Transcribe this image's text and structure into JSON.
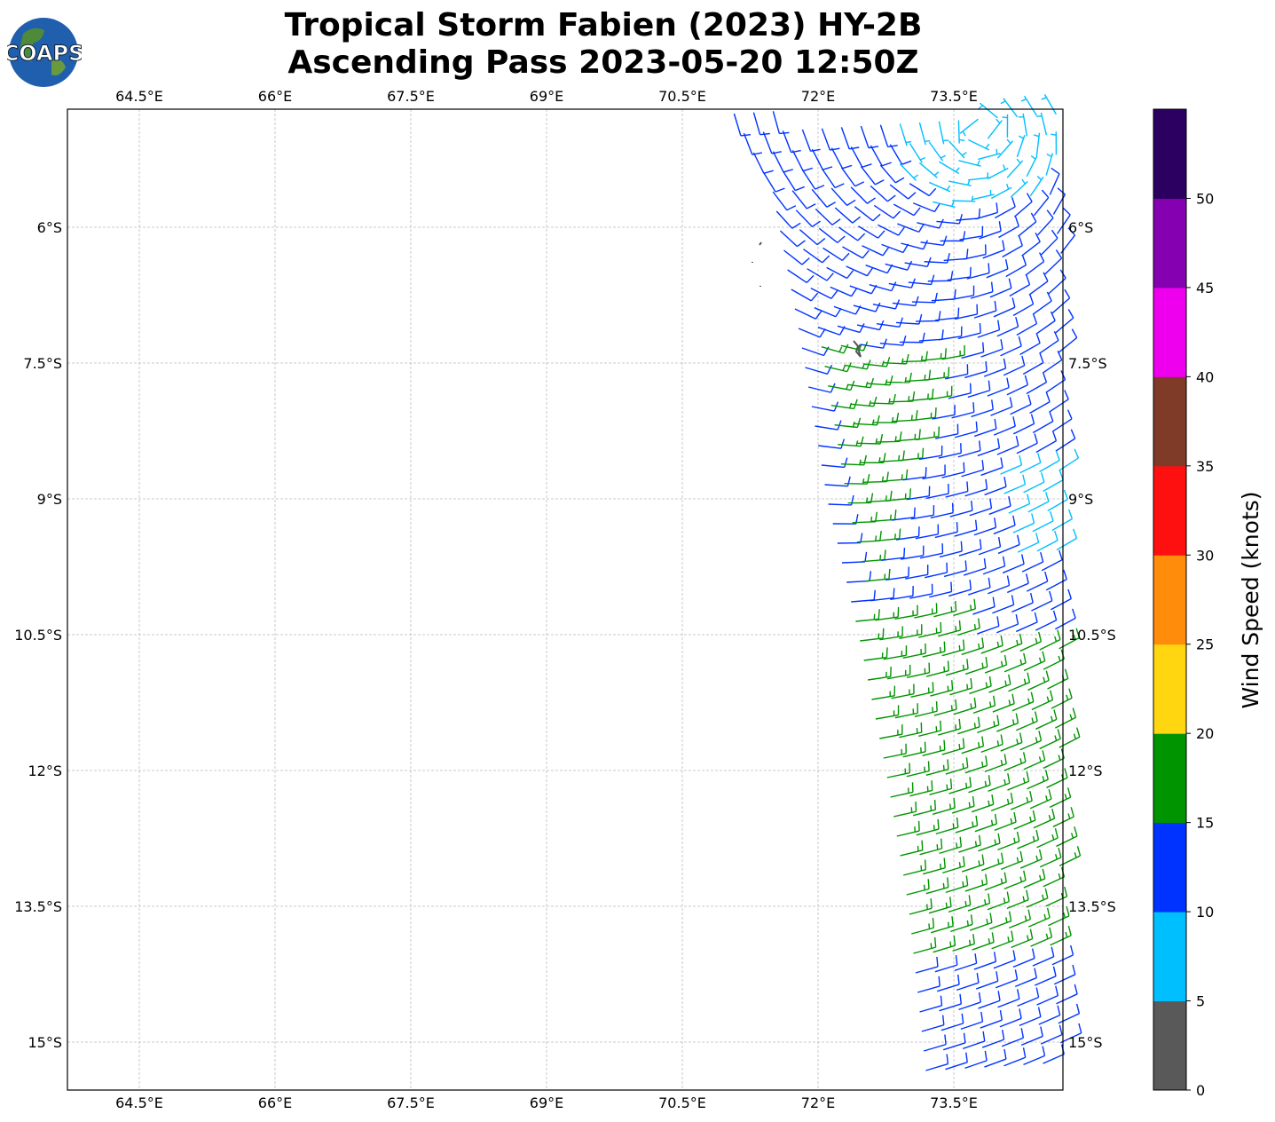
{
  "title": {
    "line1": "Tropical Storm Fabien (2023) HY-2B",
    "line2": "Ascending Pass 2023-05-20 12:50Z"
  },
  "logo": {
    "text": "COAPS"
  },
  "map": {
    "lon_ticks": [
      64.5,
      66,
      67.5,
      69,
      70.5,
      72,
      73.5
    ],
    "lon_labels": [
      "64.5°E",
      "66°E",
      "67.5°E",
      "69°E",
      "70.5°E",
      "72°E",
      "73.5°E"
    ],
    "lat_ticks": [
      -6,
      -7.5,
      -9,
      -10.5,
      -12,
      -13.5,
      -15
    ],
    "lat_labels": [
      "6°S",
      "7.5°S",
      "9°S",
      "10.5°S",
      "12°S",
      "13.5°S",
      "15°S"
    ],
    "extent": {
      "lon_min": 63.7,
      "lon_max": 74.7,
      "lat_min": -15.53,
      "lat_max": -4.7
    },
    "gridlines": true
  },
  "wind_field": {
    "circulation_center": {
      "lon": 73.8,
      "lat": -4.9
    },
    "inflow_angle_deg": 20,
    "swath_west_edge": [
      [
        72.6,
        -4.7
      ],
      [
        73.05,
        -5.6
      ],
      [
        73.35,
        -7.2
      ],
      [
        73.65,
        -9.0
      ],
      [
        74.0,
        -10.5
      ],
      [
        74.3,
        -12.0
      ],
      [
        74.55,
        -13.5
      ],
      [
        74.75,
        -15.4
      ]
    ],
    "regions": [
      {
        "name": "core",
        "speed_kt": 7,
        "radius_deg": 1.0
      },
      {
        "name": "east-calm",
        "speed_kt": 8,
        "lon": [
          74.0,
          74.7
        ],
        "lat": [
          -9.6,
          -8.6
        ]
      },
      {
        "name": "green-band",
        "speed_kt": 17
      },
      {
        "name": "south",
        "speed_kt": 12,
        "lat": [
          -15.6,
          -14.1
        ]
      }
    ],
    "default_speed_kt": 12
  },
  "colorbar": {
    "label": "Wind Speed (knots)",
    "bounds": [
      0,
      5,
      10,
      15,
      20,
      25,
      30,
      35,
      40,
      45,
      50,
      55
    ],
    "tick_labels": [
      "0",
      "5",
      "10",
      "15",
      "20",
      "25",
      "30",
      "35",
      "40",
      "45",
      "50"
    ],
    "colors": [
      "#595959",
      "#00bfff",
      "#0033ff",
      "#009400",
      "#ffd610",
      "#ff8c0a",
      "#ff1010",
      "#7f3a28",
      "#ee00ee",
      "#8400b0",
      "#2c0060"
    ]
  }
}
